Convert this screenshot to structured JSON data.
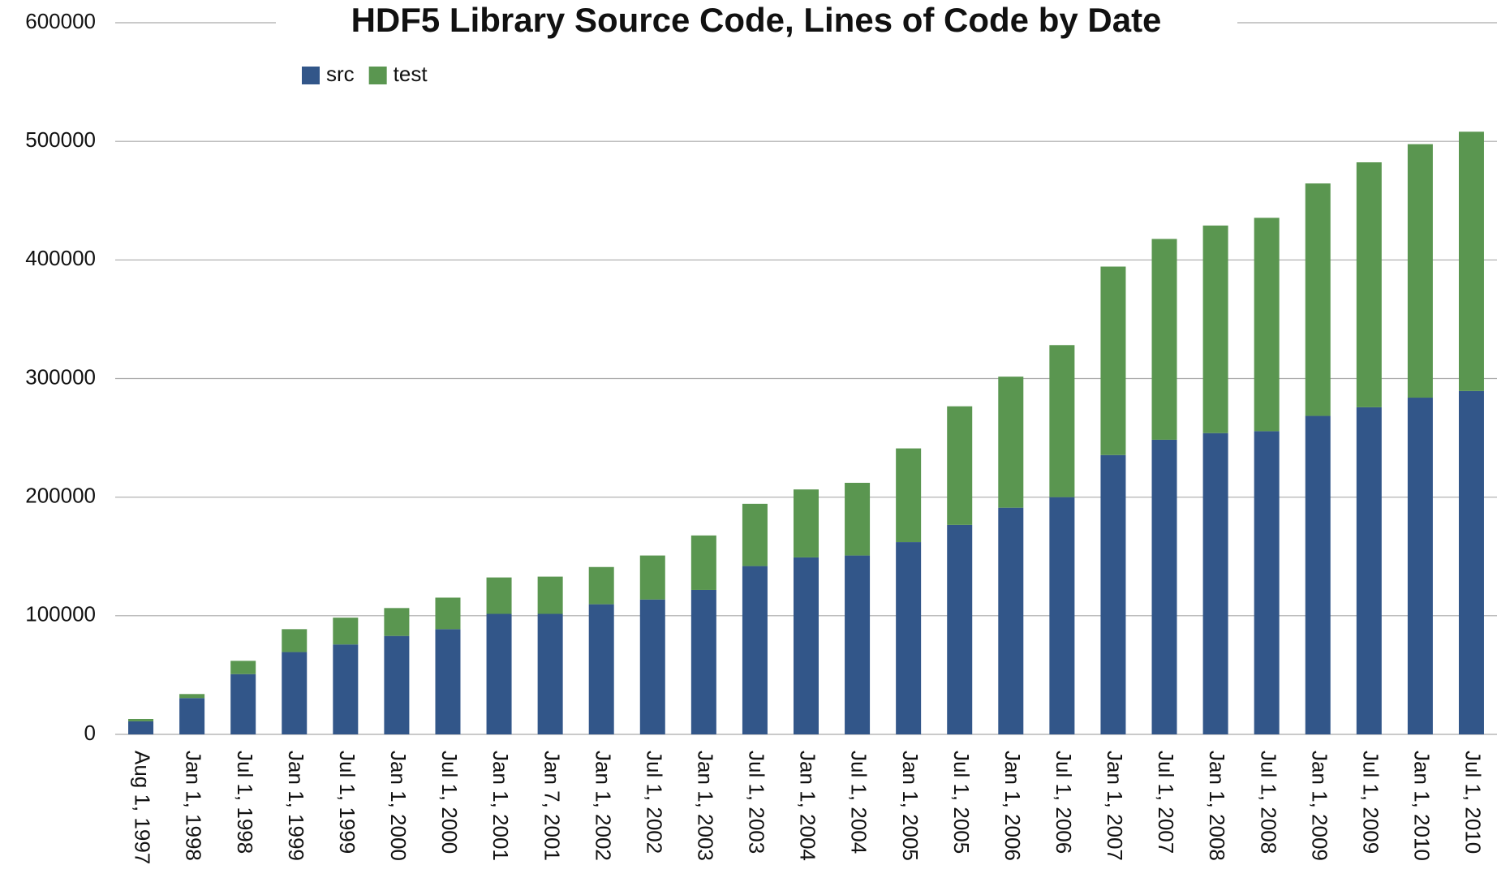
{
  "chart_data": {
    "type": "stacked_bar",
    "title": "HDF5 Library Source Code, Lines of Code by Date",
    "categories": [
      "Aug 1, 1997",
      "Jan 1, 1998",
      "Jul 1, 1998",
      "Jan 1, 1999",
      "Jul 1, 1999",
      "Jan 1, 2000",
      "Jul 1, 2000",
      "Jan 1, 2001",
      "Jan 7, 2001",
      "Jan 1, 2002",
      "Jul 1, 2002",
      "Jan 1, 2003",
      "Jul 1, 2003",
      "Jan 1, 2004",
      "Jul 1, 2004",
      "Jan 1, 2005",
      "Jul 1, 2005",
      "Jan 1, 2006",
      "Jul 1, 2006",
      "Jan 1, 2007",
      "Jul 1, 2007",
      "Jan 1, 2008",
      "Jul 1, 2008",
      "Jan 1, 2009",
      "Jul 1, 2009",
      "Jan 1, 2010",
      "Jul 1, 2010"
    ],
    "series": [
      {
        "name": "src",
        "color": "#325689",
        "values": [
          11000,
          30600,
          50800,
          69400,
          75800,
          83000,
          88700,
          101600,
          101600,
          109700,
          113700,
          121800,
          141900,
          149200,
          150800,
          162100,
          176600,
          191100,
          200000,
          235500,
          248400,
          254000,
          255600,
          268500,
          275800,
          283900,
          289500
        ]
      },
      {
        "name": "test",
        "color": "#5a9650",
        "values": [
          2000,
          3400,
          11200,
          19300,
          22600,
          23500,
          26600,
          30700,
          31400,
          31400,
          37100,
          45900,
          52500,
          57300,
          61300,
          79000,
          100000,
          110500,
          128200,
          158900,
          169300,
          175000,
          179900,
          196000,
          206500,
          213700,
          218600
        ]
      }
    ],
    "ylim": [
      0,
      600000
    ],
    "yticks": [
      0,
      100000,
      200000,
      300000,
      400000,
      500000,
      600000
    ],
    "grid": true,
    "legend": "top-left"
  }
}
